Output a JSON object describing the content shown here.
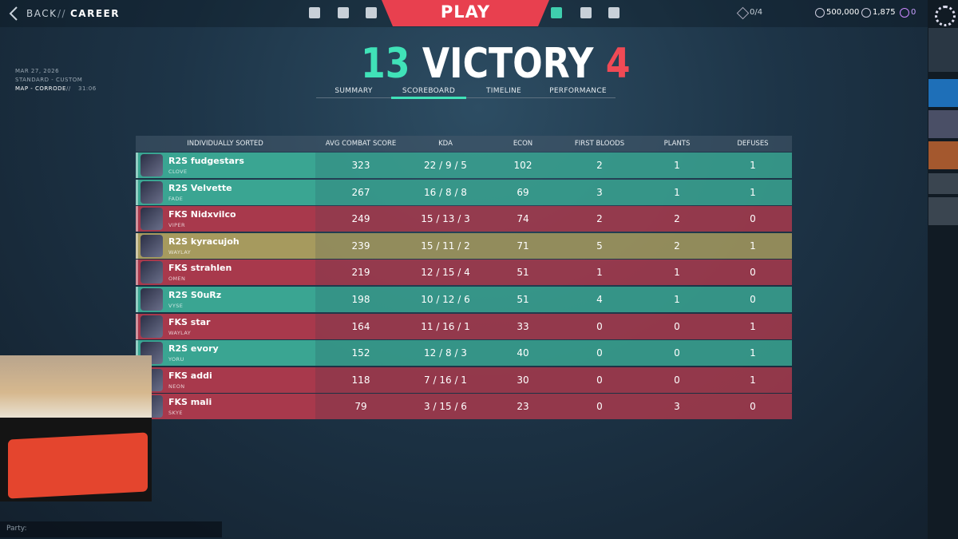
{
  "nav": {
    "back": "BACK",
    "separator": "//",
    "section": "CAREER",
    "play": "PLAY",
    "ranked_progress": "0/4",
    "vp": "500,000",
    "radianite": "1,875",
    "kingdom": "0"
  },
  "match": {
    "date": "MAR 27, 2026",
    "mode": "STANDARD - CUSTOM",
    "map": "MAP - CORRODE",
    "separator": "//",
    "duration": "31:06"
  },
  "result": {
    "score_left": "13",
    "label": "VICTORY",
    "score_right": "4"
  },
  "tabs": [
    "SUMMARY",
    "SCOREBOARD",
    "TIMELINE",
    "PERFORMANCE"
  ],
  "table": {
    "columns": [
      "INDIVIDUALLY SORTED",
      "AVG COMBAT SCORE",
      "KDA",
      "ECON",
      "FIRST BLOODS",
      "PLANTS",
      "DEFUSES"
    ],
    "rows": [
      {
        "player": "R2S fudgestars",
        "agent": "CLOVE",
        "acs": 323,
        "kda": "22 / 9 / 5",
        "econ": 102,
        "first_bloods": 2,
        "plants": 1,
        "defuses": 1,
        "color": "#3aa592"
      },
      {
        "player": "R2S Velvette",
        "agent": "FADE",
        "acs": 267,
        "kda": "16 / 8 / 8",
        "econ": 69,
        "first_bloods": 3,
        "plants": 1,
        "defuses": 1,
        "color": "#3aa592"
      },
      {
        "player": "FKS Nidxvilco",
        "agent": "VIPER",
        "acs": 249,
        "kda": "15 / 13 / 3",
        "econ": 74,
        "first_bloods": 2,
        "plants": 2,
        "defuses": 0,
        "color": "#a8394c"
      },
      {
        "player": "R2S kyracujoh",
        "agent": "WAYLAY",
        "acs": 239,
        "kda": "15 / 11 / 2",
        "econ": 71,
        "first_bloods": 5,
        "plants": 2,
        "defuses": 1,
        "color": "#a69a5e"
      },
      {
        "player": "FKS strahlen",
        "agent": "OMEN",
        "acs": 219,
        "kda": "12 / 15 / 4",
        "econ": 51,
        "first_bloods": 1,
        "plants": 1,
        "defuses": 0,
        "color": "#a8394c"
      },
      {
        "player": "R2S S0uRz",
        "agent": "VYSE",
        "acs": 198,
        "kda": "10 / 12 / 6",
        "econ": 51,
        "first_bloods": 4,
        "plants": 1,
        "defuses": 0,
        "color": "#3aa592"
      },
      {
        "player": "FKS star",
        "agent": "WAYLAY",
        "acs": 164,
        "kda": "11 / 16 / 1",
        "econ": 33,
        "first_bloods": 0,
        "plants": 0,
        "defuses": 1,
        "color": "#a8394c"
      },
      {
        "player": "R2S evory",
        "agent": "YORU",
        "acs": 152,
        "kda": "12 / 8 / 3",
        "econ": 40,
        "first_bloods": 0,
        "plants": 0,
        "defuses": 1,
        "color": "#3aa592"
      },
      {
        "player": "FKS addi",
        "agent": "NEON",
        "acs": 118,
        "kda": "7 / 16 / 1",
        "econ": 30,
        "first_bloods": 0,
        "plants": 0,
        "defuses": 1,
        "color": "#a8394c"
      },
      {
        "player": "FKS mali",
        "agent": "SKYE",
        "acs": 79,
        "kda": "3 / 15 / 6",
        "econ": 23,
        "first_bloods": 0,
        "plants": 3,
        "defuses": 0,
        "color": "#a8394c"
      }
    ]
  },
  "party": {
    "label": "Party:"
  }
}
